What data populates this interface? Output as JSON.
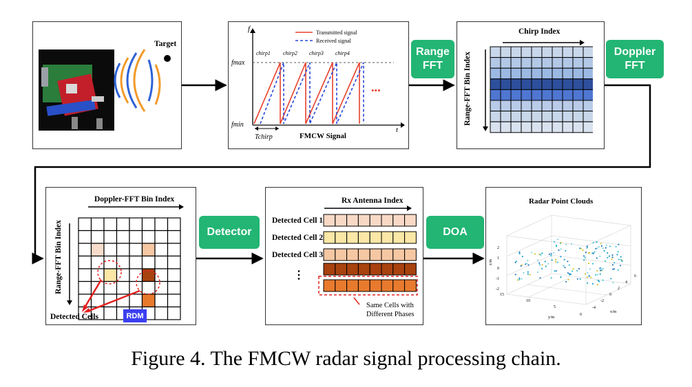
{
  "panel1": {
    "target_label": "Target"
  },
  "panel2": {
    "f_axis": "f",
    "t_axis": "t",
    "fmax": "fmax",
    "fmin": "fmin",
    "tchirp": "Tchirp",
    "chirps": [
      "chirp1",
      "chirp2",
      "chirp3",
      "chirp4"
    ],
    "legend_tx": "Transmitted signal",
    "legend_rx": "Received signal",
    "ellipsis": "•••",
    "title": "FMCW Signal"
  },
  "steps": {
    "range_fft": "Range FFT",
    "doppler_fft": "Doppler FFT",
    "detector": "Detector",
    "doa": "DOA"
  },
  "panel3": {
    "x_label": "Chirp Index",
    "y_label": "Range-FFT Bin Index"
  },
  "panel4": {
    "x_label": "Doppler-FFT Bin Index",
    "y_label": "Range-FFT Bin Index",
    "detected": "Detected Cells",
    "badge": "RDM"
  },
  "panel5": {
    "x_label": "Rx Antenna Index",
    "rows": [
      "Detected Cell 1",
      "Detected Cell 2",
      "Detected Cell 3"
    ],
    "dots": "⋮",
    "note_line1": "Same Cells with",
    "note_line2": "Different Phases"
  },
  "panel6": {
    "title": "Radar Point Clouds",
    "z_label": "z/m",
    "y_label": "y/m",
    "x_label": "x/m",
    "z_ticks": [
      "2",
      "1",
      "0",
      "-1",
      "-2"
    ],
    "y_ticks": [
      "15",
      "10",
      "5",
      "0"
    ],
    "x_ticks": [
      "6",
      "4",
      "2",
      "0",
      "-2",
      "-4"
    ]
  },
  "colors": {
    "green": "#22b573",
    "tx": "#e8412c",
    "rx": "#2646d9",
    "rdm_badge": "#3b3ff0",
    "orange": "#e87a2e",
    "brown": "#a8420f"
  },
  "caption": "Figure 4. The FMCW radar signal processing chain."
}
